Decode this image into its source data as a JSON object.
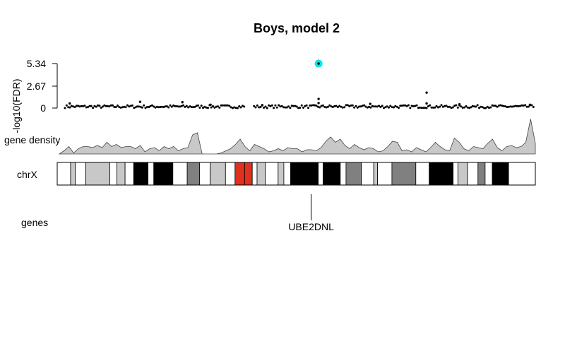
{
  "chart_data": {
    "type": "scatter",
    "title": "Boys, model 2",
    "ylabel": "-log10(FDR)",
    "y_ticks": [
      "0",
      "2.67",
      "5.34"
    ],
    "ylim": [
      0,
      5.34
    ],
    "chromosome": "chrX",
    "density_label": "gene density",
    "genes_label": "genes",
    "highlighted_point": {
      "x": 0.54,
      "y": 5.34,
      "color": "#00e5ee"
    },
    "notable_points": [
      {
        "x": 0.01,
        "y": 0.55
      },
      {
        "x": 0.16,
        "y": 0.75
      },
      {
        "x": 0.25,
        "y": 0.7
      },
      {
        "x": 0.31,
        "y": 0.4
      },
      {
        "x": 0.42,
        "y": 0.35
      },
      {
        "x": 0.54,
        "y": 1.1
      },
      {
        "x": 0.54,
        "y": 0.6
      },
      {
        "x": 0.65,
        "y": 0.5
      },
      {
        "x": 0.77,
        "y": 1.85
      },
      {
        "x": 0.77,
        "y": 0.55
      },
      {
        "x": 0.84,
        "y": 0.45
      },
      {
        "x": 0.99,
        "y": 0.4
      }
    ],
    "gap": [
      0.385,
      0.4
    ],
    "baseline_band": [
      0.0,
      0.35
    ],
    "density": [
      0.0,
      0.15,
      0.35,
      0.05,
      0.25,
      0.35,
      0.35,
      0.3,
      0.4,
      0.3,
      0.55,
      0.35,
      0.45,
      0.3,
      0.35,
      0.35,
      0.25,
      0.4,
      0.1,
      0.25,
      0.3,
      0.15,
      0.35,
      0.25,
      0.35,
      0.15,
      0.25,
      0.3,
      0.9,
      1.0,
      0.0,
      0.0,
      0.0,
      0.0,
      0.05,
      0.15,
      0.25,
      0.45,
      0.7,
      0.35,
      0.15,
      0.45,
      0.35,
      0.25,
      0.1,
      0.15,
      0.25,
      0.15,
      0.3,
      0.25,
      0.25,
      0.1,
      0.2,
      0.2,
      0.15,
      0.3,
      0.6,
      0.8,
      0.55,
      0.7,
      0.4,
      0.25,
      0.45,
      0.3,
      0.2,
      0.3,
      0.25,
      0.1,
      0.15,
      0.35,
      0.6,
      0.55,
      0.15,
      0.2,
      0.1,
      0.3,
      0.2,
      0.1,
      0.3,
      0.55,
      0.35,
      0.2,
      0.15,
      0.75,
      0.55,
      0.25,
      0.15,
      0.35,
      0.3,
      0.25,
      0.5,
      0.7,
      0.3,
      0.15,
      0.35,
      0.4,
      0.3,
      0.35,
      0.55,
      1.65,
      0.5
    ],
    "bands": [
      {
        "start": 0.0,
        "end": 0.028,
        "color": "#ffffff"
      },
      {
        "start": 0.028,
        "end": 0.038,
        "color": "#c8c8c8"
      },
      {
        "start": 0.038,
        "end": 0.06,
        "color": "#ffffff"
      },
      {
        "start": 0.06,
        "end": 0.11,
        "color": "#c8c8c8"
      },
      {
        "start": 0.11,
        "end": 0.125,
        "color": "#ffffff"
      },
      {
        "start": 0.125,
        "end": 0.142,
        "color": "#c8c8c8"
      },
      {
        "start": 0.142,
        "end": 0.16,
        "color": "#ffffff"
      },
      {
        "start": 0.16,
        "end": 0.19,
        "color": "#000000"
      },
      {
        "start": 0.19,
        "end": 0.202,
        "color": "#ffffff"
      },
      {
        "start": 0.202,
        "end": 0.242,
        "color": "#000000"
      },
      {
        "start": 0.242,
        "end": 0.272,
        "color": "#ffffff"
      },
      {
        "start": 0.272,
        "end": 0.298,
        "color": "#808080"
      },
      {
        "start": 0.298,
        "end": 0.32,
        "color": "#ffffff"
      },
      {
        "start": 0.32,
        "end": 0.352,
        "color": "#c8c8c8"
      },
      {
        "start": 0.352,
        "end": 0.372,
        "color": "#ffffff"
      },
      {
        "start": 0.372,
        "end": 0.392,
        "color": "#e0301e"
      },
      {
        "start": 0.392,
        "end": 0.408,
        "color": "#e0301e"
      },
      {
        "start": 0.408,
        "end": 0.418,
        "color": "#ffffff"
      },
      {
        "start": 0.418,
        "end": 0.435,
        "color": "#c8c8c8"
      },
      {
        "start": 0.435,
        "end": 0.462,
        "color": "#ffffff"
      },
      {
        "start": 0.462,
        "end": 0.474,
        "color": "#c8c8c8"
      },
      {
        "start": 0.474,
        "end": 0.488,
        "color": "#ffffff"
      },
      {
        "start": 0.488,
        "end": 0.546,
        "color": "#000000"
      },
      {
        "start": 0.546,
        "end": 0.556,
        "color": "#ffffff"
      },
      {
        "start": 0.556,
        "end": 0.592,
        "color": "#000000"
      },
      {
        "start": 0.592,
        "end": 0.604,
        "color": "#ffffff"
      },
      {
        "start": 0.604,
        "end": 0.636,
        "color": "#808080"
      },
      {
        "start": 0.636,
        "end": 0.662,
        "color": "#ffffff"
      },
      {
        "start": 0.662,
        "end": 0.67,
        "color": "#c8c8c8"
      },
      {
        "start": 0.67,
        "end": 0.7,
        "color": "#ffffff"
      },
      {
        "start": 0.7,
        "end": 0.75,
        "color": "#808080"
      },
      {
        "start": 0.75,
        "end": 0.778,
        "color": "#ffffff"
      },
      {
        "start": 0.778,
        "end": 0.828,
        "color": "#000000"
      },
      {
        "start": 0.828,
        "end": 0.838,
        "color": "#ffffff"
      },
      {
        "start": 0.838,
        "end": 0.858,
        "color": "#c8c8c8"
      },
      {
        "start": 0.858,
        "end": 0.88,
        "color": "#ffffff"
      },
      {
        "start": 0.88,
        "end": 0.895,
        "color": "#808080"
      },
      {
        "start": 0.895,
        "end": 0.91,
        "color": "#ffffff"
      },
      {
        "start": 0.91,
        "end": 0.944,
        "color": "#000000"
      },
      {
        "start": 0.944,
        "end": 1.0,
        "color": "#ffffff"
      }
    ],
    "genes": [
      {
        "name": "UBE2DNL",
        "x": 0.54
      }
    ]
  }
}
